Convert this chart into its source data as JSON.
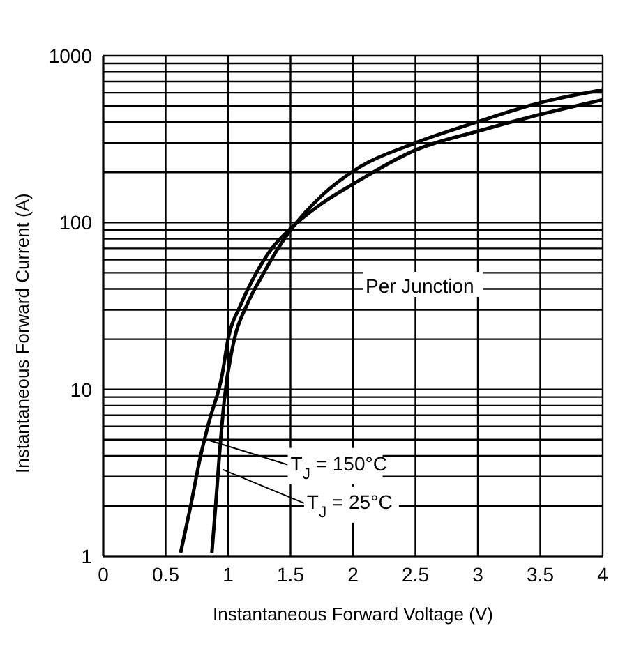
{
  "chart_data": {
    "type": "line",
    "xlabel": "Instantaneous Forward Voltage (V)",
    "ylabel": "Instantaneous Forward Current (A)",
    "log": "y",
    "grid": true,
    "legend": false,
    "marker": "none",
    "line_style": "solid",
    "xlim": [
      0,
      4
    ],
    "xticks": [
      0,
      0.5,
      1,
      1.5,
      2,
      2.5,
      3,
      3.5,
      4
    ],
    "ylim": [
      1,
      1000
    ],
    "yticks": [
      1,
      {
        "value": 2,
        "label": null
      },
      {
        "value": 3,
        "label": null
      },
      {
        "value": 4,
        "label": null
      },
      {
        "value": 5,
        "label": null
      },
      {
        "value": 6,
        "label": null
      },
      {
        "value": 7,
        "label": null
      },
      {
        "value": 8,
        "label": null
      },
      {
        "value": 9,
        "label": null
      },
      10,
      {
        "value": 20,
        "label": null
      },
      {
        "value": 30,
        "label": null
      },
      {
        "value": 40,
        "label": null
      },
      {
        "value": 50,
        "label": null
      },
      {
        "value": 60,
        "label": null
      },
      {
        "value": 70,
        "label": null
      },
      {
        "value": 80,
        "label": null
      },
      {
        "value": 90,
        "label": null
      },
      100,
      {
        "value": 200,
        "label": null
      },
      {
        "value": 300,
        "label": null
      },
      {
        "value": 400,
        "label": null
      },
      {
        "value": 500,
        "label": null
      },
      {
        "value": 600,
        "label": null
      },
      {
        "value": 700,
        "label": null
      },
      {
        "value": 800,
        "label": null
      },
      {
        "value": 900,
        "label": null
      },
      1000
    ],
    "series": [
      {
        "color": "#000000",
        "x": [
          0.62,
          0.7,
          0.78,
          0.85,
          0.95,
          1.0,
          1.1,
          1.22,
          1.35,
          1.5,
          1.75,
          2,
          2.5,
          3,
          3.5,
          4
        ],
        "values": [
          1.05,
          2,
          4,
          6.5,
          12,
          20,
          32,
          49,
          70,
          92,
          130,
          170,
          272,
          353,
          445,
          545
        ]
      },
      {
        "color": "#000000",
        "x": [
          0.87,
          0.9,
          0.93,
          0.97,
          1.05,
          1.15,
          1.28,
          1.4,
          1.5,
          1.75,
          2,
          2.5,
          3,
          3.5,
          4
        ],
        "values": [
          1.05,
          2,
          4,
          8.7,
          20,
          32,
          49,
          70,
          90,
          145,
          203,
          300,
          402,
          523,
          624
        ]
      }
    ],
    "annotations": [
      {
        "text": "T$_{J}$ = 150°C",
        "x": 0.83,
        "y": 5
      },
      {
        "text": "T$_{J}$ = 25°C",
        "x": 0.96,
        "y": 3.3
      },
      "Per Junction"
    ]
  }
}
